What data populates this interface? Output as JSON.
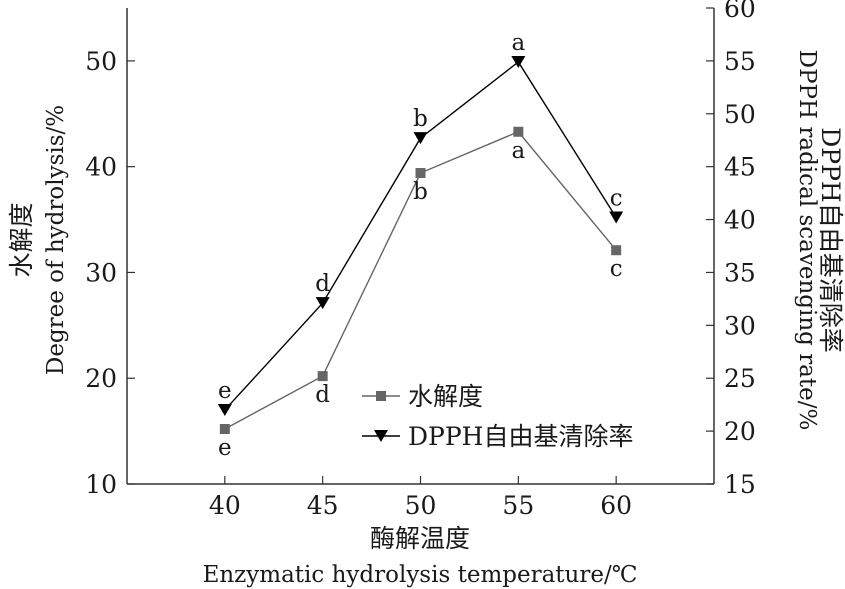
{
  "chart_data": {
    "type": "line",
    "x": [
      40,
      45,
      50,
      55,
      60
    ],
    "xlim": [
      35,
      65
    ],
    "x_ticks": [
      "40",
      "45",
      "50",
      "55",
      "60"
    ],
    "xlabel_cn": "酶解温度",
    "xlabel_en": "Enzymatic hydrolysis temperature/℃",
    "ylabel_left_cn": "水解度",
    "ylabel_left_en": "Degree of hydrolysis/%",
    "ylim_left": [
      10,
      55
    ],
    "y_ticks_left": [
      "10",
      "20",
      "30",
      "40",
      "50"
    ],
    "ylabel_right_en": "DPPH radical scavenging rate/%",
    "ylabel_right_cn": "DPPH自由基清除率",
    "ylim_right": [
      15,
      60
    ],
    "y_ticks_right": [
      "15",
      "20",
      "25",
      "30",
      "35",
      "40",
      "45",
      "50",
      "55",
      "60"
    ],
    "legend_position": "bottom-right",
    "grid": false,
    "series": [
      {
        "name": "水解度",
        "axis": "left",
        "marker": "square",
        "color": "#666666",
        "values": [
          15.2,
          20.2,
          39.4,
          43.3,
          32.1
        ],
        "labels": [
          "e",
          "d",
          "b",
          "a",
          "c"
        ],
        "label_position": "below"
      },
      {
        "name": "DPPH自由基清除率",
        "axis": "right",
        "marker": "triangle-down",
        "color": "#000000",
        "values": [
          22.0,
          32.1,
          47.7,
          54.9,
          40.2
        ],
        "labels": [
          "e",
          "d",
          "b",
          "a",
          "c"
        ],
        "label_position": "above"
      }
    ]
  }
}
